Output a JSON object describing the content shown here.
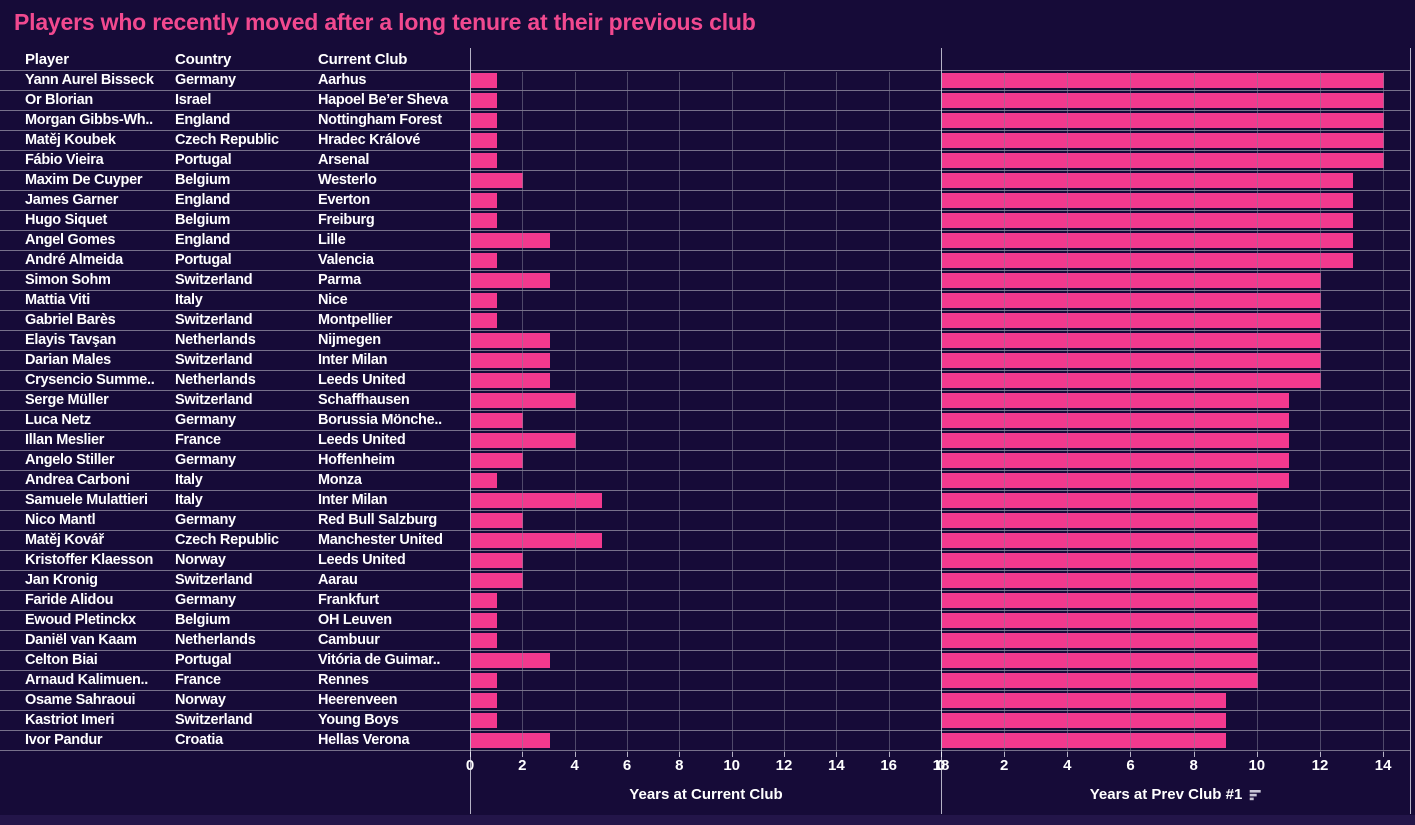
{
  "title": "Players who recently moved after a long tenure at their previous club",
  "colors": {
    "background": "#160b38",
    "bar": "#f3398e",
    "title": "#f1498f",
    "text": "#ffffff",
    "footer_strip": "#231549"
  },
  "table": {
    "columns": [
      "Player",
      "Country",
      "Current Club"
    ]
  },
  "chart_data": {
    "type": "bar",
    "title": "Players who recently moved after a long tenure at their previous club",
    "orientation": "horizontal",
    "grid": true,
    "axes": {
      "left_chart": {
        "label": "Years at Current Club",
        "ticks": [
          0,
          2,
          4,
          6,
          8,
          10,
          12,
          14,
          16,
          18
        ],
        "xlim": [
          0,
          18
        ]
      },
      "right_chart": {
        "label": "Years at Prev Club #1",
        "ticks": [
          0,
          2,
          4,
          6,
          8,
          10,
          12,
          14
        ],
        "xlim": [
          0,
          14.85
        ],
        "sort_icon": "sort-descending"
      }
    },
    "series": [
      {
        "name": "Years at Current Club",
        "values": [
          1,
          1,
          1,
          1,
          1,
          2,
          1,
          1,
          3,
          1,
          3,
          1,
          1,
          3,
          3,
          3,
          4,
          2,
          4,
          2,
          1,
          5,
          2,
          5,
          2,
          2,
          1,
          1,
          1,
          3,
          1,
          1,
          1,
          3
        ]
      },
      {
        "name": "Years at Prev Club #1",
        "values": [
          14,
          14,
          14,
          14,
          14,
          13,
          13,
          13,
          13,
          13,
          12,
          12,
          12,
          12,
          12,
          12,
          11,
          11,
          11,
          11,
          11,
          10,
          10,
          10,
          10,
          10,
          10,
          10,
          10,
          10,
          10,
          9,
          9,
          9
        ]
      }
    ],
    "rows": [
      {
        "player": "Yann Aurel Bisseck",
        "country": "Germany",
        "club": "Aarhus",
        "years_current": 1,
        "years_prev": 14
      },
      {
        "player": "Or Blorian",
        "country": "Israel",
        "club": "Hapoel Be’er Sheva",
        "years_current": 1,
        "years_prev": 14
      },
      {
        "player": "Morgan Gibbs-Wh..",
        "country": "England",
        "club": "Nottingham Forest",
        "years_current": 1,
        "years_prev": 14
      },
      {
        "player": "Matěj Koubek",
        "country": "Czech Republic",
        "club": "Hradec Králové",
        "years_current": 1,
        "years_prev": 14
      },
      {
        "player": "Fábio Vieira",
        "country": "Portugal",
        "club": "Arsenal",
        "years_current": 1,
        "years_prev": 14
      },
      {
        "player": "Maxim De Cuyper",
        "country": "Belgium",
        "club": "Westerlo",
        "years_current": 2,
        "years_prev": 13
      },
      {
        "player": "James Garner",
        "country": "England",
        "club": "Everton",
        "years_current": 1,
        "years_prev": 13
      },
      {
        "player": "Hugo Siquet",
        "country": "Belgium",
        "club": "Freiburg",
        "years_current": 1,
        "years_prev": 13
      },
      {
        "player": "Angel Gomes",
        "country": "England",
        "club": "Lille",
        "years_current": 3,
        "years_prev": 13
      },
      {
        "player": "André Almeida",
        "country": "Portugal",
        "club": "Valencia",
        "years_current": 1,
        "years_prev": 13
      },
      {
        "player": "Simon Sohm",
        "country": "Switzerland",
        "club": "Parma",
        "years_current": 3,
        "years_prev": 12
      },
      {
        "player": "Mattia Viti",
        "country": "Italy",
        "club": "Nice",
        "years_current": 1,
        "years_prev": 12
      },
      {
        "player": "Gabriel Barès",
        "country": "Switzerland",
        "club": "Montpellier",
        "years_current": 1,
        "years_prev": 12
      },
      {
        "player": "Elayis Tavşan",
        "country": "Netherlands",
        "club": "Nijmegen",
        "years_current": 3,
        "years_prev": 12
      },
      {
        "player": "Darian Males",
        "country": "Switzerland",
        "club": "Inter Milan",
        "years_current": 3,
        "years_prev": 12
      },
      {
        "player": "Crysencio Summe..",
        "country": "Netherlands",
        "club": "Leeds United",
        "years_current": 3,
        "years_prev": 12
      },
      {
        "player": "Serge Müller",
        "country": "Switzerland",
        "club": "Schaffhausen",
        "years_current": 4,
        "years_prev": 11
      },
      {
        "player": "Luca Netz",
        "country": "Germany",
        "club": "Borussia Mönche..",
        "years_current": 2,
        "years_prev": 11
      },
      {
        "player": "Illan Meslier",
        "country": "France",
        "club": "Leeds United",
        "years_current": 4,
        "years_prev": 11
      },
      {
        "player": "Angelo Stiller",
        "country": "Germany",
        "club": "Hoffenheim",
        "years_current": 2,
        "years_prev": 11
      },
      {
        "player": "Andrea Carboni",
        "country": "Italy",
        "club": "Monza",
        "years_current": 1,
        "years_prev": 11
      },
      {
        "player": "Samuele Mulattieri",
        "country": "Italy",
        "club": "Inter Milan",
        "years_current": 5,
        "years_prev": 10
      },
      {
        "player": "Nico Mantl",
        "country": "Germany",
        "club": "Red Bull Salzburg",
        "years_current": 2,
        "years_prev": 10
      },
      {
        "player": "Matěj Kovář",
        "country": "Czech Republic",
        "club": "Manchester United",
        "years_current": 5,
        "years_prev": 10
      },
      {
        "player": "Kristoffer Klaesson",
        "country": "Norway",
        "club": "Leeds United",
        "years_current": 2,
        "years_prev": 10
      },
      {
        "player": "Jan Kronig",
        "country": "Switzerland",
        "club": "Aarau",
        "years_current": 2,
        "years_prev": 10
      },
      {
        "player": "Faride Alidou",
        "country": "Germany",
        "club": "Frankfurt",
        "years_current": 1,
        "years_prev": 10
      },
      {
        "player": "Ewoud Pletinckx",
        "country": "Belgium",
        "club": "OH Leuven",
        "years_current": 1,
        "years_prev": 10
      },
      {
        "player": "Daniël van Kaam",
        "country": "Netherlands",
        "club": "Cambuur",
        "years_current": 1,
        "years_prev": 10
      },
      {
        "player": "Celton Biai",
        "country": "Portugal",
        "club": "Vitória de Guimar..",
        "years_current": 3,
        "years_prev": 10
      },
      {
        "player": "Arnaud Kalimuen..",
        "country": "France",
        "club": "Rennes",
        "years_current": 1,
        "years_prev": 10
      },
      {
        "player": "Osame Sahraoui",
        "country": "Norway",
        "club": "Heerenveen",
        "years_current": 1,
        "years_prev": 9
      },
      {
        "player": "Kastriot Imeri",
        "country": "Switzerland",
        "club": "Young Boys",
        "years_current": 1,
        "years_prev": 9
      },
      {
        "player": "Ivor Pandur",
        "country": "Croatia",
        "club": "Hellas Verona",
        "years_current": 3,
        "years_prev": 9
      }
    ]
  }
}
